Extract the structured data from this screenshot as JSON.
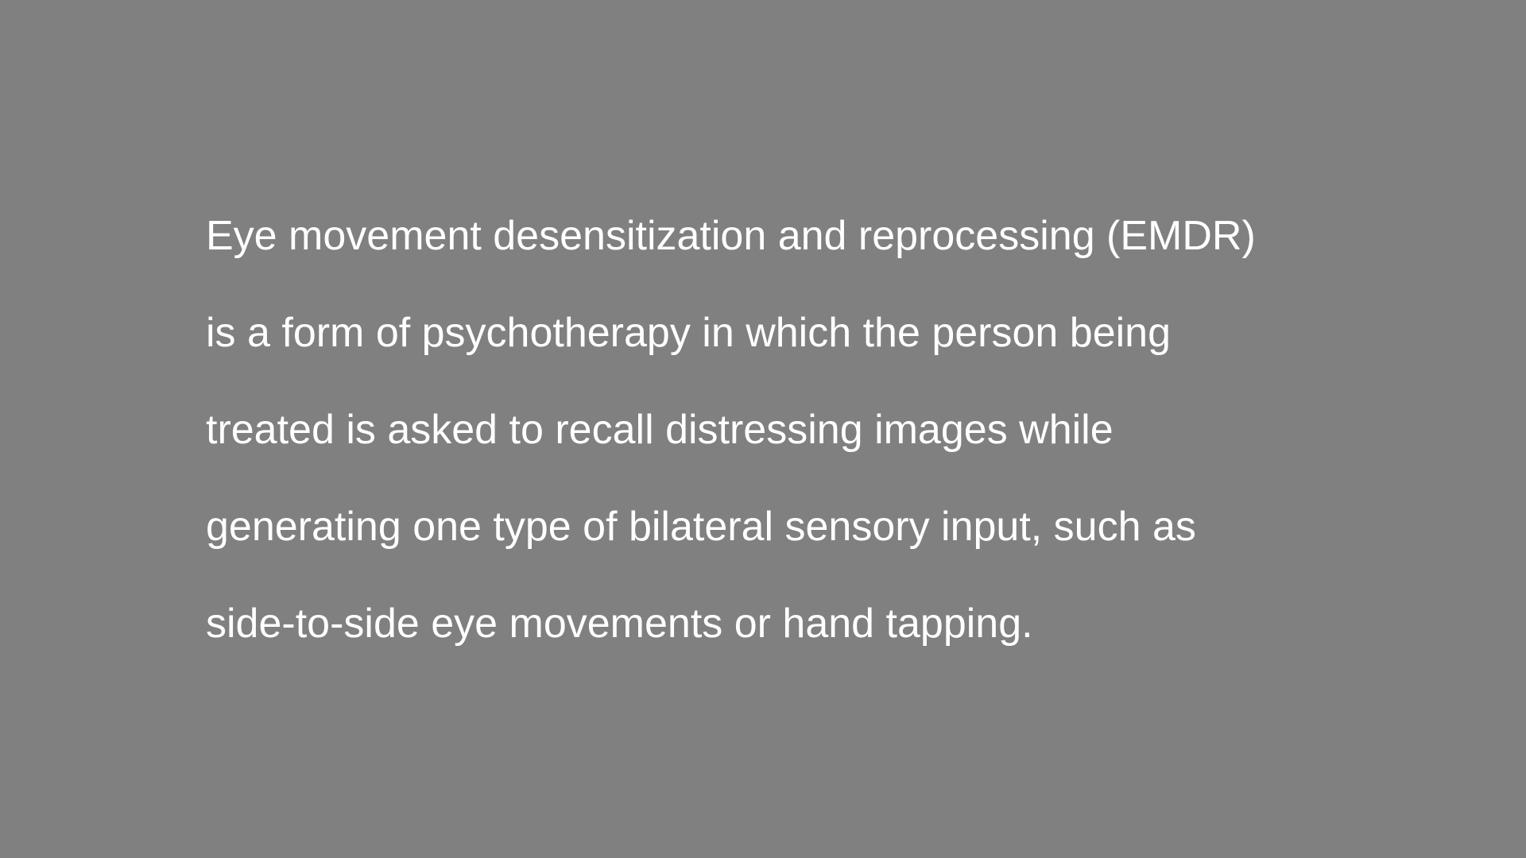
{
  "colors": {
    "background": "#808080",
    "text": "#ffffff"
  },
  "paragraph": {
    "lines": [
      "Eye movement desensitization and reprocessing (EMDR)",
      "is a form of psychotherapy in which the person being",
      "treated is asked to recall distressing images while",
      "generating one type of bilateral sensory input, such as",
      "side-to-side eye movements or hand tapping."
    ]
  }
}
